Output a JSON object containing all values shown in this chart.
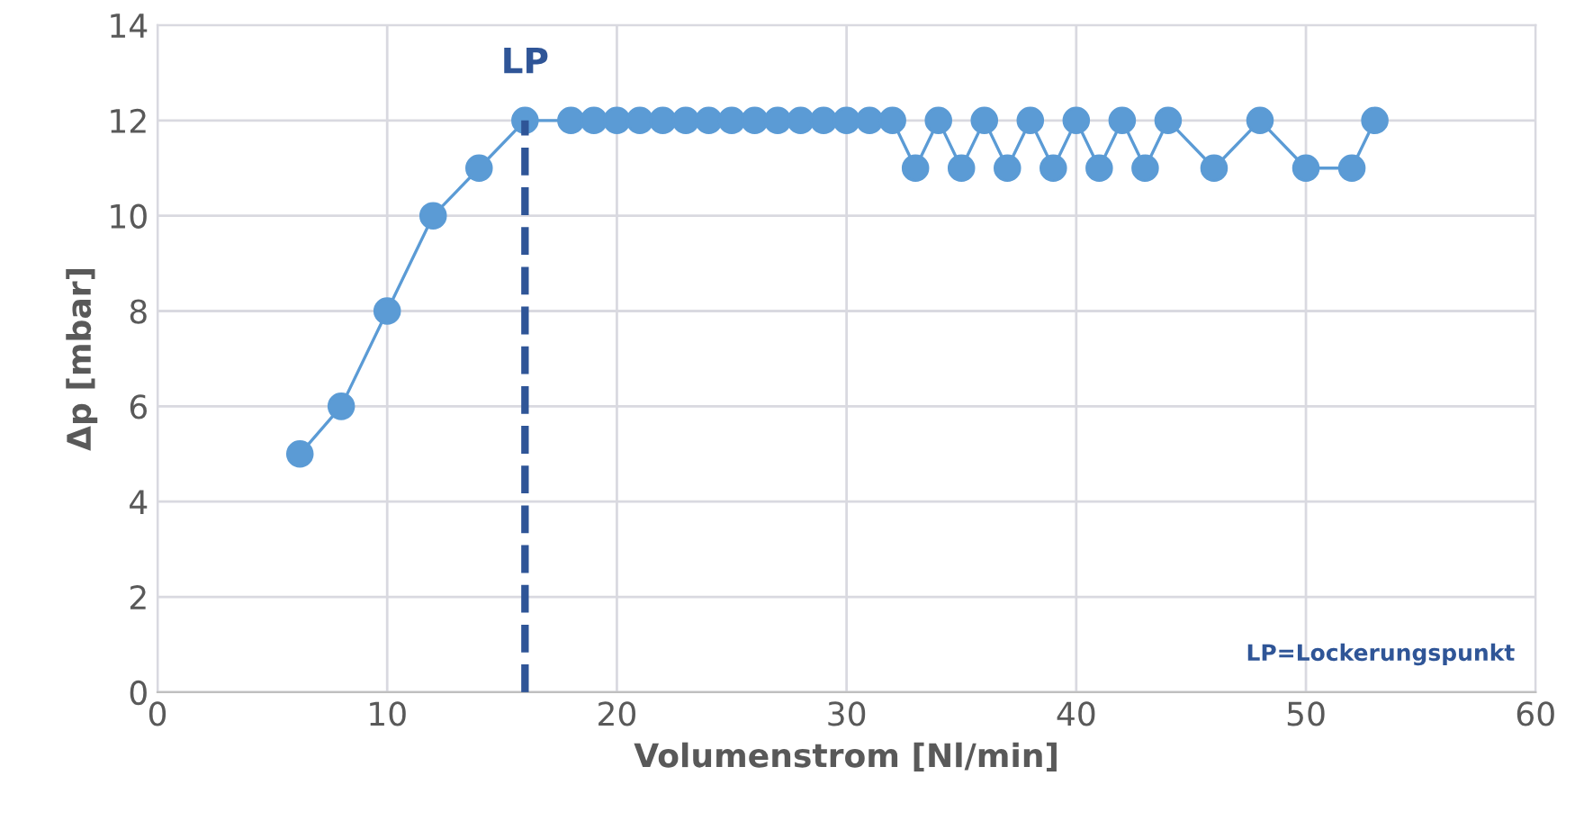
{
  "chart_data": {
    "type": "line",
    "xlabel": "Volumenstrom [Nl/min]",
    "ylabel": "Δp [mbar]",
    "x": [
      6.2,
      8,
      10,
      12,
      14,
      16,
      18,
      19,
      20,
      21,
      22,
      23,
      24,
      25,
      26,
      27,
      28,
      29,
      30,
      31,
      32,
      33,
      34,
      35,
      36,
      37,
      38,
      39,
      40,
      41,
      42,
      43,
      44,
      46,
      48,
      50,
      52,
      53
    ],
    "series": [
      {
        "color": "#5b9bd5",
        "values": [
          5,
          6,
          8,
          10,
          11,
          12,
          12,
          12,
          12,
          12,
          12,
          12,
          12,
          12,
          12,
          12,
          12,
          12,
          12,
          12,
          12,
          11,
          12,
          11,
          12,
          11,
          12,
          11,
          12,
          11,
          12,
          11,
          12,
          11,
          12,
          11,
          11,
          12
        ]
      }
    ],
    "marker": "circle",
    "line_style": "solid",
    "xlim": [
      0,
      60
    ],
    "xticks": [
      0,
      10,
      20,
      30,
      40,
      50,
      60
    ],
    "ylim": [
      0,
      14
    ],
    "yticks": [
      0,
      2,
      4,
      6,
      8,
      10,
      12,
      14
    ],
    "grid": true,
    "ref_lines": [
      {
        "axis": "x",
        "value": 16,
        "label": "LP",
        "color": "#2f5597",
        "line_style": "dashed"
      }
    ],
    "annotations": [
      "LP=Lockerungspunkt"
    ]
  }
}
